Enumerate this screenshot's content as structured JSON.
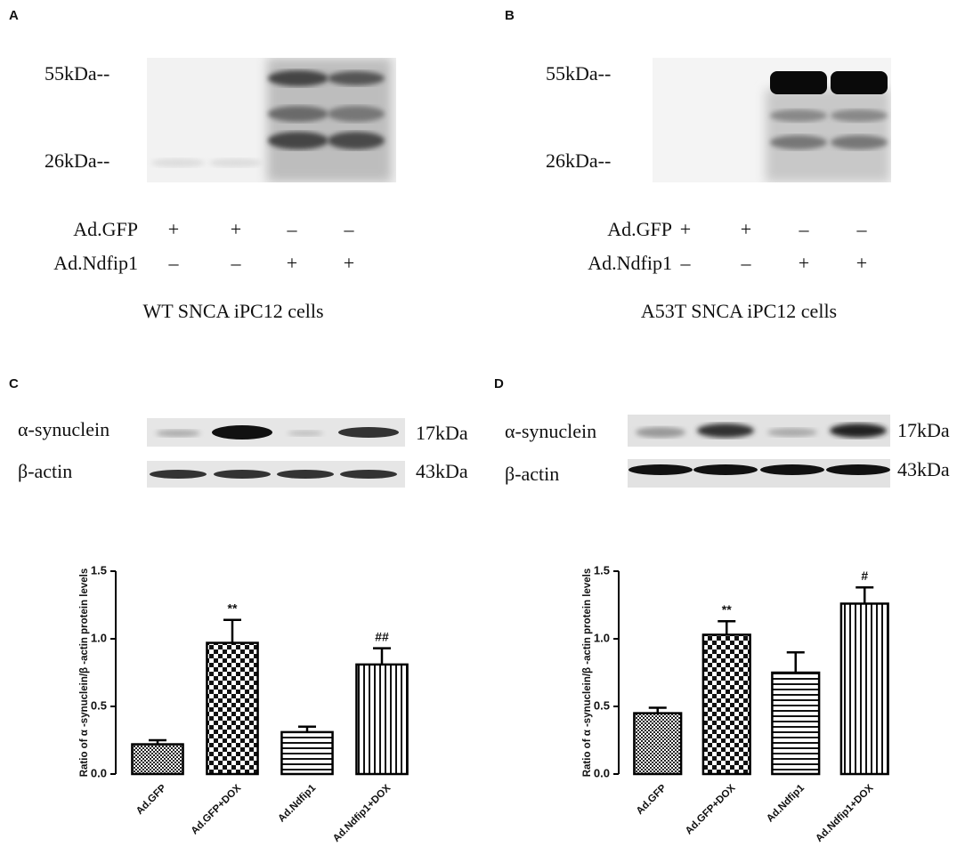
{
  "panels": [
    {
      "letter": "A",
      "markers": [
        "55kDa--",
        "26kDa--"
      ],
      "rows": [
        {
          "label": "Ad.GFP",
          "signs": [
            "+",
            "+",
            "–",
            "–"
          ]
        },
        {
          "label": "Ad.Ndfip1",
          "signs": [
            "–",
            "–",
            "+",
            "+"
          ]
        }
      ],
      "caption": "WT SNCA iPC12 cells"
    },
    {
      "letter": "B",
      "markers": [
        "55kDa--",
        "26kDa--"
      ],
      "rows": [
        {
          "label": "Ad.GFP",
          "signs": [
            "+",
            "+",
            "–",
            "–"
          ]
        },
        {
          "label": "Ad.Ndfip1",
          "signs": [
            "–",
            "–",
            "+",
            "+"
          ]
        }
      ],
      "caption": "A53T SNCA iPC12 cells"
    },
    {
      "letter": "C",
      "blots": [
        {
          "label": "α-synuclein",
          "size": "17kDa"
        },
        {
          "label": "β-actin",
          "size": "43kDa"
        }
      ]
    },
    {
      "letter": "D",
      "blots": [
        {
          "label": "α-synuclein",
          "size": "17kDa"
        },
        {
          "label": "β-actin",
          "size": "43kDa"
        }
      ]
    }
  ],
  "chart_data": [
    {
      "type": "bar",
      "y_label": "Ratio of α -synuclein/β -actin protein levels",
      "categories": [
        "Ad.GFP",
        "Ad.GFP+DOX",
        "Ad.Ndfip1",
        "Ad.Ndfip1+DOX"
      ],
      "values": [
        0.22,
        0.97,
        0.31,
        0.81
      ],
      "errors": [
        0.03,
        0.17,
        0.04,
        0.12
      ],
      "annotations": [
        null,
        "**",
        null,
        "##"
      ],
      "ylim": [
        0,
        1.5
      ],
      "yticks": [
        {
          "value": 0,
          "label": "0.0"
        },
        {
          "value": 0.5,
          "label": "0.5"
        },
        {
          "value": 1,
          "label": "1.0"
        },
        {
          "value": 1.5,
          "label": "1.5"
        }
      ]
    },
    {
      "type": "bar",
      "y_label": "Ratio of α -synuclein/β -actin protein levels",
      "categories": [
        "Ad.GFP",
        "Ad.GFP+DOX",
        "Ad.Ndfip1",
        "Ad.Ndfip1+DOX"
      ],
      "values": [
        0.45,
        1.03,
        0.75,
        1.26
      ],
      "errors": [
        0.04,
        0.1,
        0.15,
        0.12
      ],
      "annotations": [
        null,
        "**",
        null,
        "#"
      ],
      "ylim": [
        0,
        1.5
      ],
      "yticks": [
        {
          "value": 0,
          "label": "0.0"
        },
        {
          "value": 0.5,
          "label": "0.5"
        },
        {
          "value": 1,
          "label": "1.0"
        },
        {
          "value": 1.5,
          "label": "1.5"
        }
      ]
    }
  ]
}
